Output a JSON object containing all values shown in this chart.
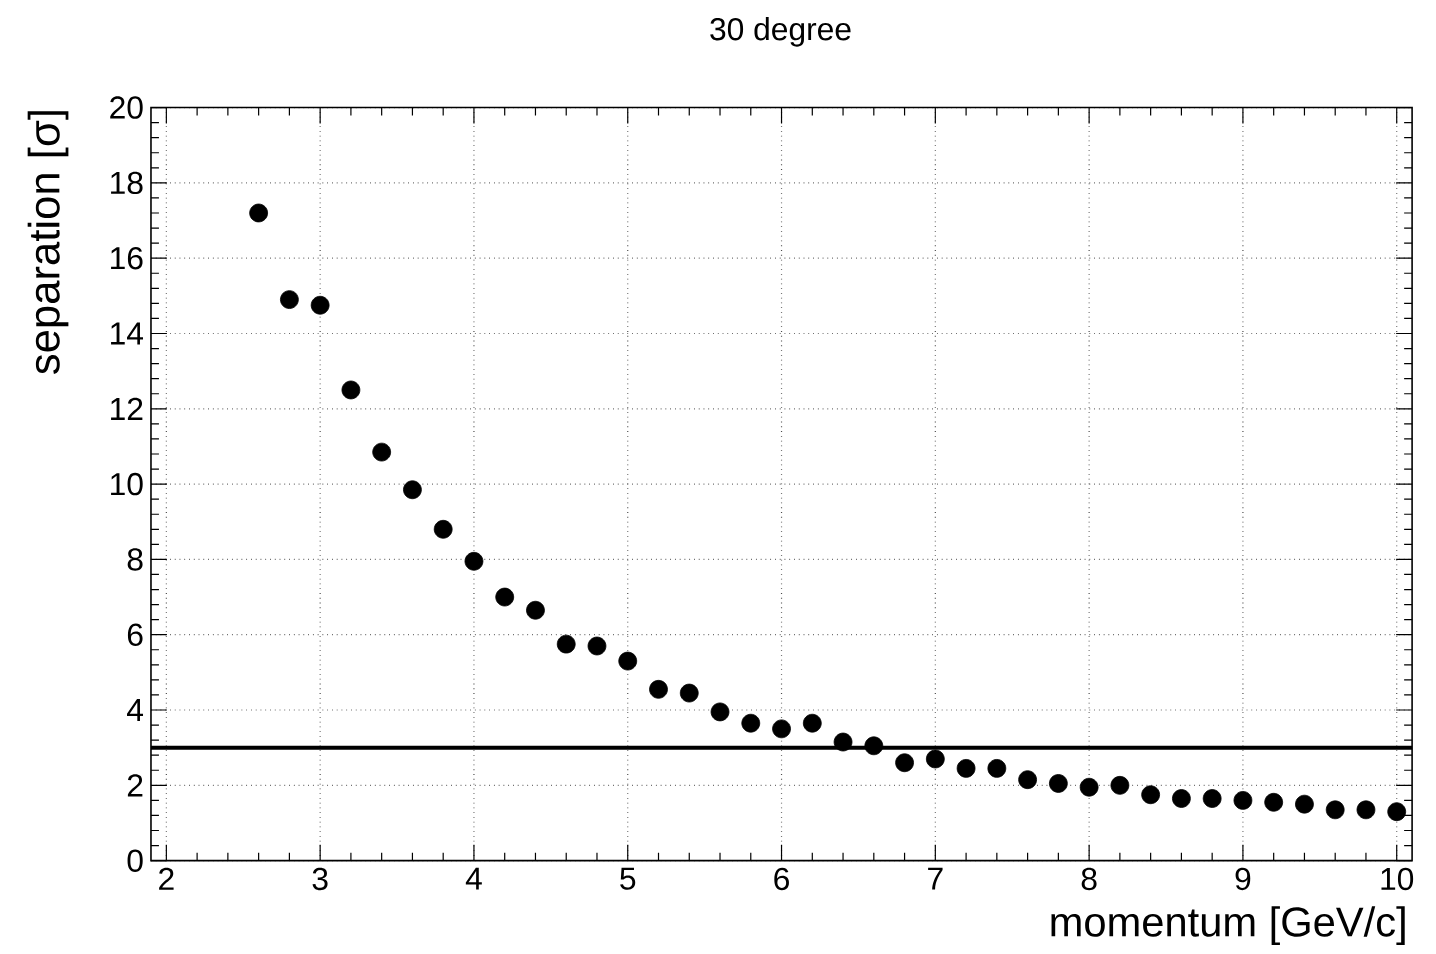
{
  "chart_data": {
    "type": "scatter",
    "title": "30 degree",
    "xlabel": "momentum [GeV/c]",
    "ylabel": "separation [σ]",
    "x": [
      2.6,
      2.8,
      3.0,
      3.2,
      3.4,
      3.6,
      3.8,
      4.0,
      4.2,
      4.4,
      4.6,
      4.8,
      5.0,
      5.2,
      5.4,
      5.6,
      5.8,
      6.0,
      6.2,
      6.4,
      6.6,
      6.8,
      7.0,
      7.2,
      7.4,
      7.6,
      7.8,
      8.0,
      8.2,
      8.4,
      8.6,
      8.8,
      9.0,
      9.2,
      9.4,
      9.6,
      9.8,
      10.0
    ],
    "values": [
      17.2,
      14.9,
      14.75,
      12.5,
      10.85,
      9.85,
      8.8,
      7.95,
      7.0,
      6.65,
      5.75,
      5.7,
      5.3,
      4.55,
      4.45,
      3.95,
      3.65,
      3.5,
      3.65,
      3.15,
      3.05,
      2.6,
      2.7,
      2.45,
      2.45,
      2.15,
      2.05,
      1.95,
      2.0,
      1.75,
      1.65,
      1.65,
      1.6,
      1.55,
      1.5,
      1.35,
      1.35,
      1.3
    ],
    "color": "#000000",
    "marker": "circle",
    "xlim": [
      1.9,
      10.1
    ],
    "ylim": [
      0,
      20
    ],
    "xticks": [
      2,
      3,
      4,
      5,
      6,
      7,
      8,
      9,
      10
    ],
    "yticks": [
      0,
      2,
      4,
      6,
      8,
      10,
      12,
      14,
      16,
      18,
      20
    ],
    "grid": true,
    "ref_lines": [
      {
        "axis": "y",
        "value": 3,
        "color": "#000000"
      }
    ]
  }
}
